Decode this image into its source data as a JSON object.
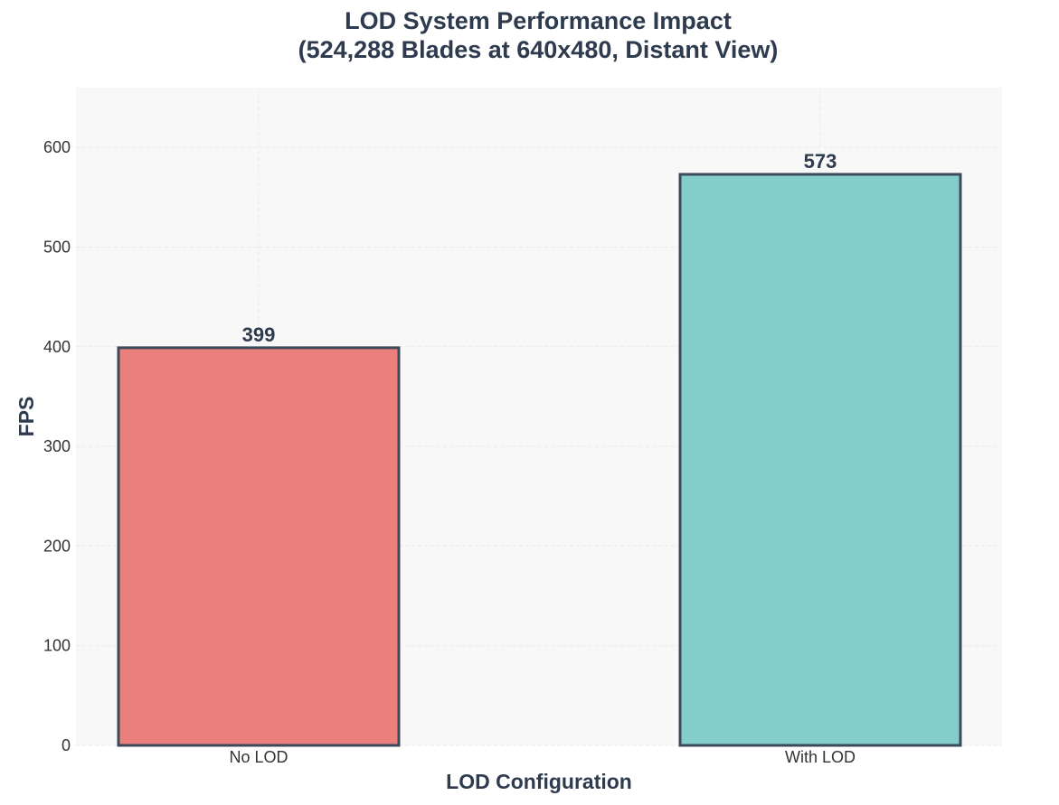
{
  "chart_data": {
    "type": "bar",
    "title": "LOD System Performance Impact",
    "subtitle": "(524,288 Blades at 640x480, Distant View)",
    "xlabel": "LOD Configuration",
    "ylabel": "FPS",
    "categories": [
      "No LOD",
      "With LOD"
    ],
    "values": [
      399,
      573
    ],
    "data_labels": [
      "399",
      "573"
    ],
    "bar_colors": [
      "#EA7F7B",
      "#83CEC8"
    ],
    "bar_edge_color": "#3D4A5C",
    "text_color": "#2E3B4E",
    "plot_background": "#F8F8F8",
    "grid_color": "#EAEAEA",
    "grid": true,
    "ylim": [
      0,
      660
    ],
    "yticks": [
      0,
      100,
      200,
      300,
      400,
      500,
      600
    ],
    "ytick_labels": [
      "0",
      "100",
      "200",
      "300",
      "400",
      "500",
      "600"
    ]
  }
}
